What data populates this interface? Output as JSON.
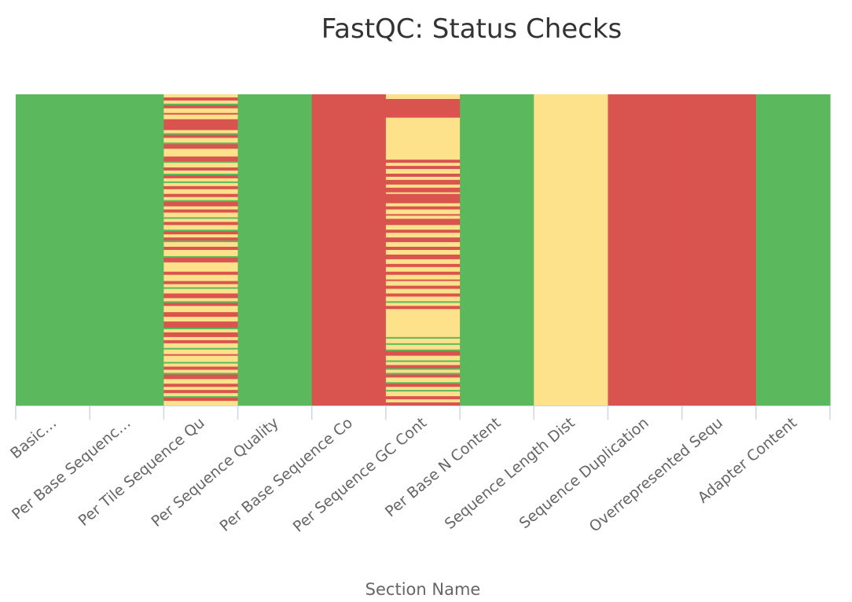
{
  "chart_data": {
    "type": "heatmap",
    "title": "FastQC: Status Checks",
    "xlabel": "Section Name",
    "ylabel": "",
    "colors": {
      "pass": "#5cb85c",
      "warn": "#fee18b",
      "fail": "#d9534f"
    },
    "categories": [
      "Basic…",
      "Per Base Sequenc…",
      "Per Tile Sequence Qu",
      "Per Sequence Quality",
      "Per Base Sequence Co",
      "Per Sequence GC Cont",
      "Per Base N Content",
      "Sequence Length Dist",
      "Sequence Duplication",
      "Overrepresented Sequ",
      "Adapter Content"
    ],
    "columns": [
      {
        "section": "Basic…",
        "segments": [
          [
            "pass",
            0,
            1
          ]
        ]
      },
      {
        "section": "Per Base Sequenc…",
        "segments": [
          [
            "pass",
            0,
            1
          ]
        ]
      },
      {
        "section": "Per Tile Sequence Qu",
        "segments": [
          [
            "warn",
            0,
            0.01
          ],
          [
            "fail",
            0.01,
            0.02
          ],
          [
            "warn",
            0.02,
            0.03
          ],
          [
            "pass",
            0.03,
            0.035
          ],
          [
            "fail",
            0.035,
            0.045
          ],
          [
            "warn",
            0.045,
            0.06
          ],
          [
            "fail",
            0.06,
            0.065
          ],
          [
            "warn",
            0.065,
            0.08
          ],
          [
            "fail",
            0.08,
            0.115
          ],
          [
            "warn",
            0.115,
            0.125
          ],
          [
            "pass",
            0.125,
            0.13
          ],
          [
            "fail",
            0.13,
            0.14
          ],
          [
            "warn",
            0.14,
            0.155
          ],
          [
            "pass",
            0.155,
            0.16
          ],
          [
            "fail",
            0.16,
            0.175
          ],
          [
            "warn",
            0.175,
            0.2
          ],
          [
            "fail",
            0.2,
            0.215
          ],
          [
            "pass",
            0.215,
            0.22
          ],
          [
            "warn",
            0.22,
            0.235
          ],
          [
            "fail",
            0.235,
            0.245
          ],
          [
            "warn",
            0.245,
            0.255
          ],
          [
            "pass",
            0.255,
            0.26
          ],
          [
            "fail",
            0.26,
            0.27
          ],
          [
            "warn",
            0.27,
            0.28
          ],
          [
            "pass",
            0.28,
            0.285
          ],
          [
            "warn",
            0.285,
            0.295
          ],
          [
            "fail",
            0.295,
            0.305
          ],
          [
            "warn",
            0.305,
            0.32
          ],
          [
            "fail",
            0.32,
            0.33
          ],
          [
            "warn",
            0.33,
            0.34
          ],
          [
            "pass",
            0.34,
            0.345
          ],
          [
            "fail",
            0.345,
            0.36
          ],
          [
            "warn",
            0.36,
            0.37
          ],
          [
            "fail",
            0.37,
            0.38
          ],
          [
            "warn",
            0.38,
            0.395
          ],
          [
            "pass",
            0.395,
            0.4
          ],
          [
            "warn",
            0.4,
            0.41
          ],
          [
            "fail",
            0.41,
            0.42
          ],
          [
            "warn",
            0.42,
            0.435
          ],
          [
            "pass",
            0.435,
            0.44
          ],
          [
            "fail",
            0.44,
            0.45
          ],
          [
            "warn",
            0.45,
            0.46
          ],
          [
            "fail",
            0.46,
            0.47
          ],
          [
            "pass",
            0.47,
            0.475
          ],
          [
            "warn",
            0.475,
            0.49
          ],
          [
            "fail",
            0.49,
            0.5
          ],
          [
            "warn",
            0.5,
            0.52
          ],
          [
            "pass",
            0.52,
            0.525
          ],
          [
            "fail",
            0.525,
            0.54
          ],
          [
            "warn",
            0.54,
            0.57
          ],
          [
            "fail",
            0.57,
            0.58
          ],
          [
            "warn",
            0.58,
            0.6
          ],
          [
            "fail",
            0.6,
            0.61
          ],
          [
            "warn",
            0.61,
            0.62
          ],
          [
            "pass",
            0.62,
            0.625
          ],
          [
            "warn",
            0.625,
            0.64
          ],
          [
            "fail",
            0.64,
            0.655
          ],
          [
            "warn",
            0.655,
            0.665
          ],
          [
            "pass",
            0.665,
            0.67
          ],
          [
            "fail",
            0.67,
            0.68
          ],
          [
            "warn",
            0.68,
            0.7
          ],
          [
            "fail",
            0.7,
            0.715
          ],
          [
            "warn",
            0.715,
            0.73
          ],
          [
            "fail",
            0.73,
            0.75
          ],
          [
            "pass",
            0.75,
            0.755
          ],
          [
            "warn",
            0.755,
            0.765
          ],
          [
            "fail",
            0.765,
            0.78
          ],
          [
            "warn",
            0.78,
            0.79
          ],
          [
            "fail",
            0.79,
            0.8
          ],
          [
            "warn",
            0.8,
            0.815
          ],
          [
            "pass",
            0.815,
            0.82
          ],
          [
            "warn",
            0.82,
            0.835
          ],
          [
            "fail",
            0.835,
            0.84
          ],
          [
            "warn",
            0.84,
            0.86
          ],
          [
            "pass",
            0.86,
            0.865
          ],
          [
            "warn",
            0.865,
            0.875
          ],
          [
            "fail",
            0.875,
            0.885
          ],
          [
            "warn",
            0.885,
            0.895
          ],
          [
            "pass",
            0.895,
            0.9
          ],
          [
            "fail",
            0.9,
            0.915
          ],
          [
            "warn",
            0.915,
            0.93
          ],
          [
            "fail",
            0.93,
            0.94
          ],
          [
            "warn",
            0.94,
            0.95
          ],
          [
            "fail",
            0.95,
            0.96
          ],
          [
            "warn",
            0.96,
            0.97
          ],
          [
            "pass",
            0.97,
            0.975
          ],
          [
            "fail",
            0.975,
            0.985
          ],
          [
            "warn",
            0.985,
            1
          ]
        ]
      },
      {
        "section": "Per Sequence Quality",
        "segments": [
          [
            "pass",
            0,
            1
          ]
        ]
      },
      {
        "section": "Per Base Sequence Co",
        "segments": [
          [
            "fail",
            0,
            1
          ]
        ]
      },
      {
        "section": "Per Sequence GC Cont",
        "segments": [
          [
            "warn",
            0,
            0.015
          ],
          [
            "fail",
            0.015,
            0.075
          ],
          [
            "warn",
            0.075,
            0.21
          ],
          [
            "fail",
            0.21,
            0.22
          ],
          [
            "warn",
            0.22,
            0.23
          ],
          [
            "fail",
            0.23,
            0.24
          ],
          [
            "warn",
            0.24,
            0.255
          ],
          [
            "fail",
            0.255,
            0.265
          ],
          [
            "warn",
            0.265,
            0.275
          ],
          [
            "fail",
            0.275,
            0.29
          ],
          [
            "warn",
            0.29,
            0.3
          ],
          [
            "fail",
            0.3,
            0.315
          ],
          [
            "warn",
            0.315,
            0.32
          ],
          [
            "fail",
            0.32,
            0.35
          ],
          [
            "warn",
            0.35,
            0.36
          ],
          [
            "fail",
            0.36,
            0.37
          ],
          [
            "warn",
            0.37,
            0.385
          ],
          [
            "fail",
            0.385,
            0.39
          ],
          [
            "warn",
            0.39,
            0.4
          ],
          [
            "fail",
            0.4,
            0.42
          ],
          [
            "warn",
            0.42,
            0.435
          ],
          [
            "fail",
            0.435,
            0.445
          ],
          [
            "warn",
            0.445,
            0.46
          ],
          [
            "fail",
            0.46,
            0.475
          ],
          [
            "warn",
            0.475,
            0.49
          ],
          [
            "fail",
            0.49,
            0.5
          ],
          [
            "warn",
            0.5,
            0.515
          ],
          [
            "fail",
            0.515,
            0.53
          ],
          [
            "warn",
            0.53,
            0.545
          ],
          [
            "fail",
            0.545,
            0.555
          ],
          [
            "warn",
            0.555,
            0.57
          ],
          [
            "fail",
            0.57,
            0.58
          ],
          [
            "warn",
            0.58,
            0.595
          ],
          [
            "fail",
            0.595,
            0.6
          ],
          [
            "warn",
            0.6,
            0.615
          ],
          [
            "fail",
            0.615,
            0.625
          ],
          [
            "warn",
            0.625,
            0.64
          ],
          [
            "fail",
            0.64,
            0.65
          ],
          [
            "warn",
            0.65,
            0.665
          ],
          [
            "pass",
            0.665,
            0.67
          ],
          [
            "warn",
            0.67,
            0.68
          ],
          [
            "fail",
            0.68,
            0.69
          ],
          [
            "warn",
            0.69,
            0.78
          ],
          [
            "pass",
            0.78,
            0.785
          ],
          [
            "warn",
            0.785,
            0.8
          ],
          [
            "pass",
            0.8,
            0.805
          ],
          [
            "warn",
            0.805,
            0.82
          ],
          [
            "pass",
            0.82,
            0.825
          ],
          [
            "fail",
            0.825,
            0.84
          ],
          [
            "warn",
            0.84,
            0.855
          ],
          [
            "pass",
            0.855,
            0.86
          ],
          [
            "warn",
            0.86,
            0.87
          ],
          [
            "fail",
            0.87,
            0.88
          ],
          [
            "pass",
            0.88,
            0.885
          ],
          [
            "warn",
            0.885,
            0.895
          ],
          [
            "pass",
            0.895,
            0.9
          ],
          [
            "fail",
            0.9,
            0.91
          ],
          [
            "warn",
            0.91,
            0.925
          ],
          [
            "pass",
            0.925,
            0.93
          ],
          [
            "fail",
            0.93,
            0.94
          ],
          [
            "warn",
            0.94,
            0.95
          ],
          [
            "pass",
            0.95,
            0.955
          ],
          [
            "warn",
            0.955,
            0.97
          ],
          [
            "fail",
            0.97,
            0.98
          ],
          [
            "warn",
            0.98,
            0.99
          ],
          [
            "fail",
            0.99,
            1
          ]
        ]
      },
      {
        "section": "Per Base N Content",
        "segments": [
          [
            "pass",
            0,
            1
          ]
        ]
      },
      {
        "section": "Sequence Length Dist",
        "segments": [
          [
            "warn",
            0,
            1
          ]
        ]
      },
      {
        "section": "Sequence Duplication",
        "segments": [
          [
            "fail",
            0,
            1
          ]
        ]
      },
      {
        "section": "Overrepresented Sequ",
        "segments": [
          [
            "fail",
            0,
            1
          ]
        ]
      },
      {
        "section": "Adapter Content",
        "segments": [
          [
            "pass",
            0,
            1
          ]
        ]
      }
    ]
  }
}
